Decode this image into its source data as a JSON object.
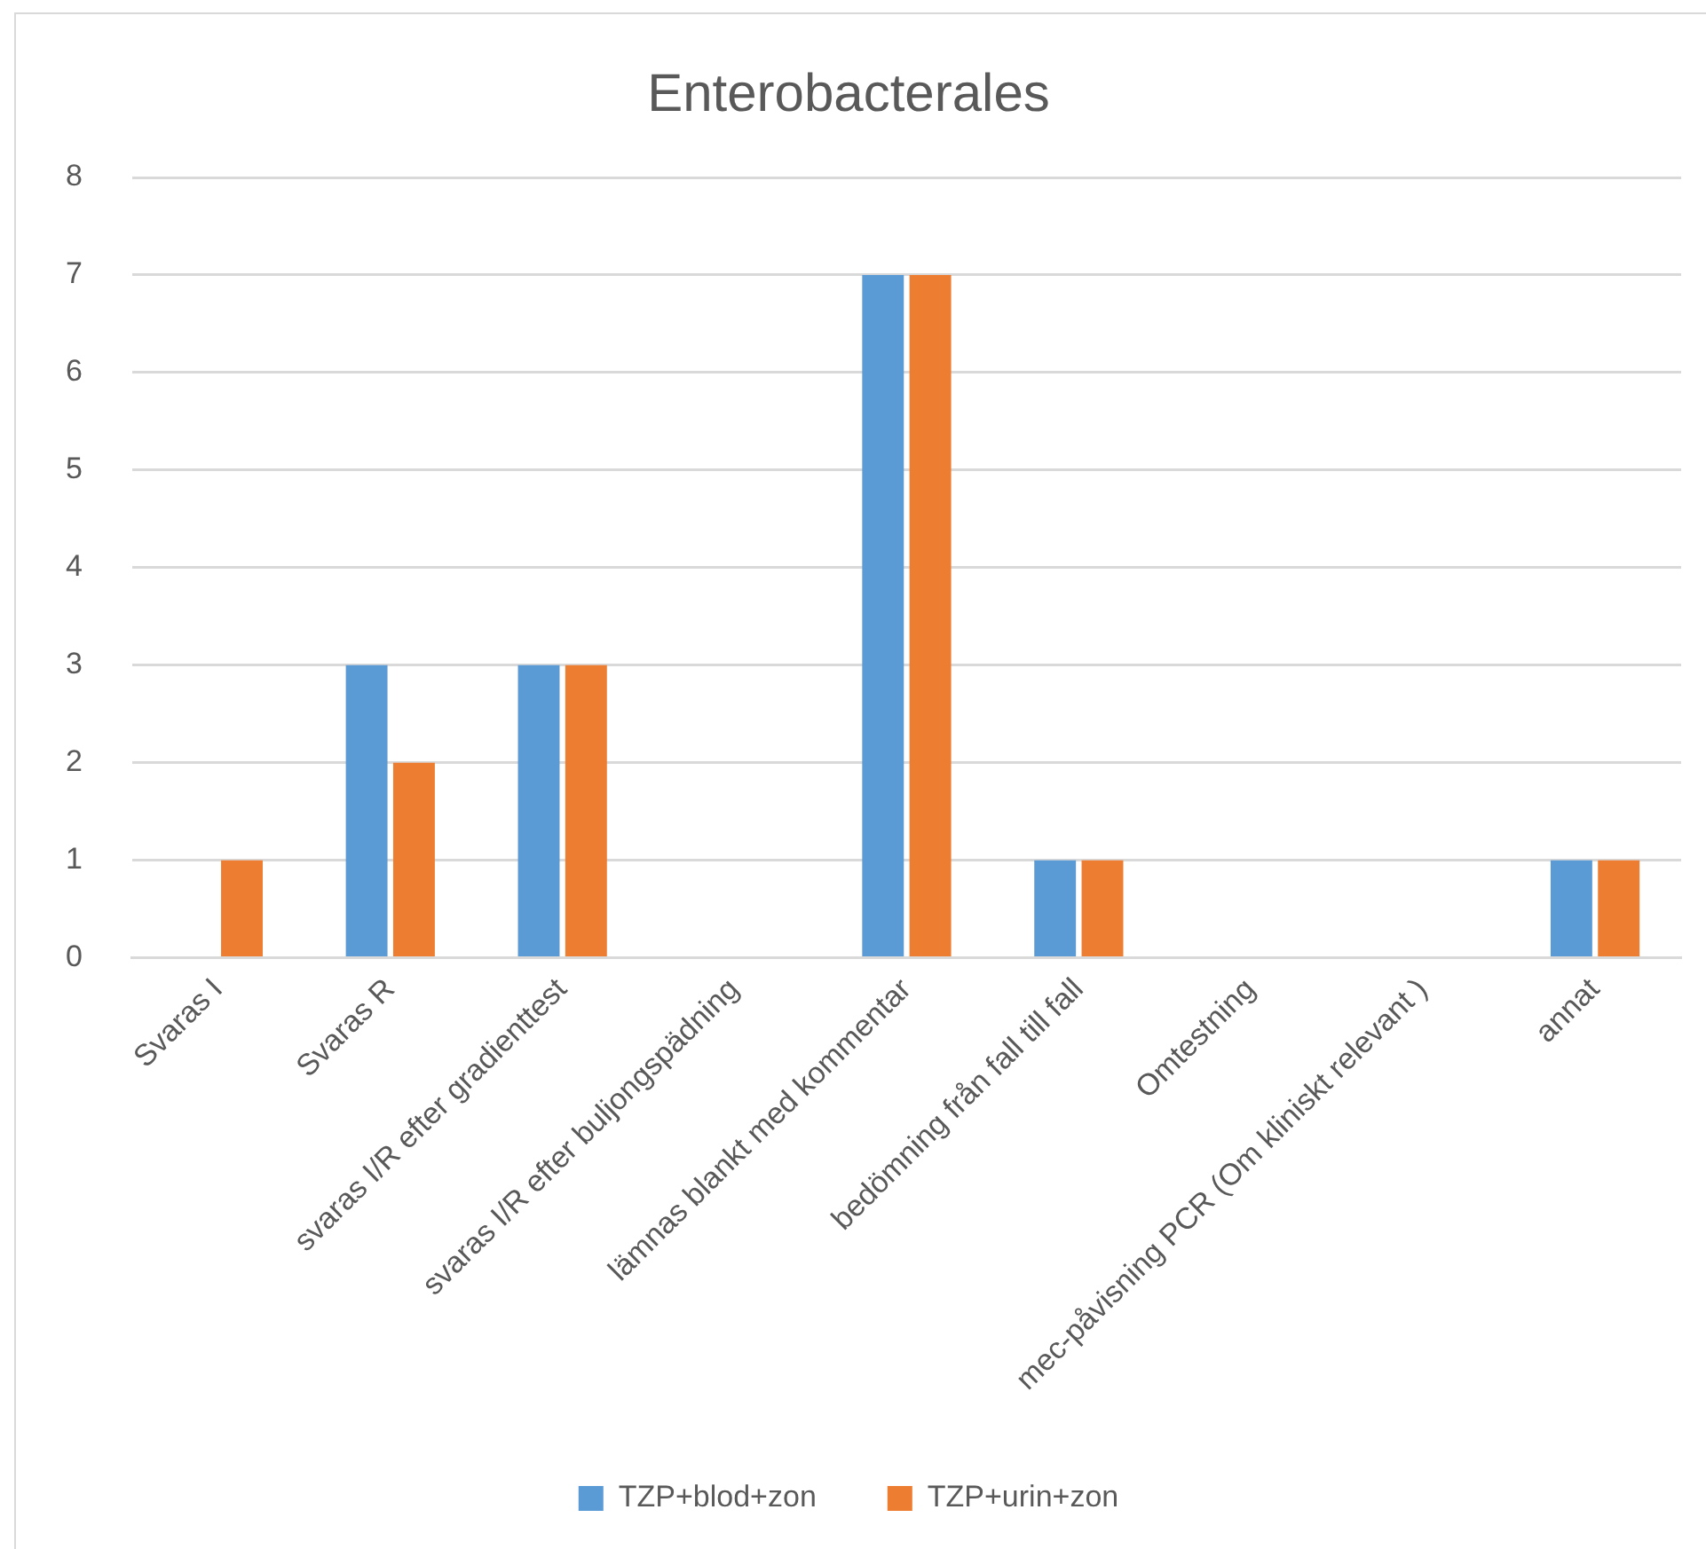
{
  "chart_data": {
    "type": "bar",
    "title": "Enterobacterales",
    "categories": [
      "Svaras I",
      "Svaras R",
      "svaras I/R efter gradienttest",
      "svaras I/R efter buljongspädning",
      "lämnas blankt med kommentar",
      "bedömning från fall till fall",
      "Omtestning",
      "mec-påvisning PCR (Om kliniskt relevant )",
      "annat"
    ],
    "series": [
      {
        "name": "TZP+blod+zon",
        "color": "#5b9bd5",
        "values": [
          0,
          3,
          3,
          0,
          7,
          1,
          0,
          0,
          1
        ]
      },
      {
        "name": "TZP+urin+zon",
        "color": "#ed7d31",
        "values": [
          1,
          2,
          3,
          0,
          7,
          1,
          0,
          0,
          1
        ]
      }
    ],
    "ylim": [
      0,
      8
    ],
    "yticks": [
      0,
      1,
      2,
      3,
      4,
      5,
      6,
      7,
      8
    ],
    "grid": "y",
    "legend": "bottom"
  }
}
